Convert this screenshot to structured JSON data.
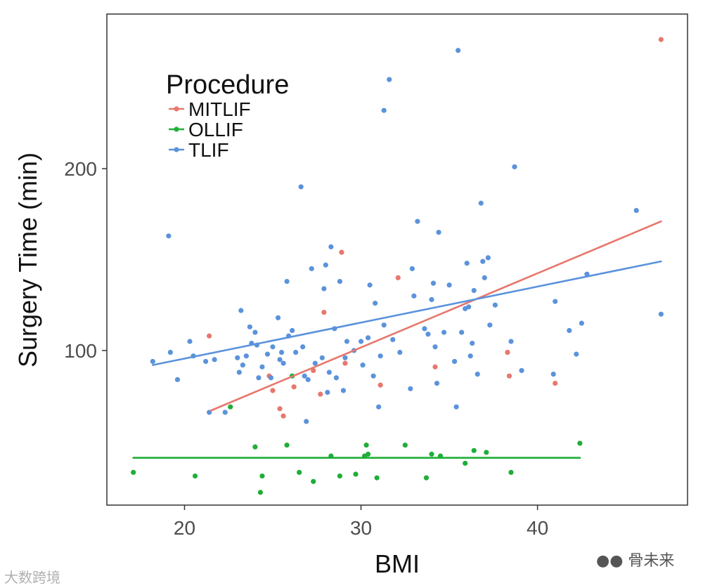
{
  "chart_data": {
    "type": "scatter",
    "title": "",
    "xlabel": "BMI",
    "ylabel": "Surgery Time (min)",
    "xlim": [
      15.6,
      48.5
    ],
    "ylim": [
      15,
      285
    ],
    "xticks": [
      20,
      30,
      40
    ],
    "yticks": [
      100,
      200
    ],
    "grid": false,
    "legend": {
      "title": "Procedure",
      "position": "top-left"
    },
    "series": [
      {
        "name": "MITLIF",
        "color": "#E8776D",
        "points": [
          [
            21.4,
            108
          ],
          [
            24.8,
            86
          ],
          [
            25.0,
            78
          ],
          [
            25.4,
            68
          ],
          [
            25.6,
            64
          ],
          [
            26.2,
            80
          ],
          [
            27.3,
            89
          ],
          [
            27.7,
            76
          ],
          [
            27.9,
            121
          ],
          [
            28.9,
            154
          ],
          [
            29.1,
            93
          ],
          [
            31.1,
            81
          ],
          [
            32.1,
            140
          ],
          [
            34.2,
            91
          ],
          [
            38.3,
            99
          ],
          [
            38.4,
            86
          ],
          [
            41.0,
            82
          ],
          [
            47.0,
            271
          ]
        ],
        "fit": {
          "x": [
            21.5,
            47.0
          ],
          "y": [
            67,
            171
          ]
        }
      },
      {
        "name": "OLLIF",
        "color": "#1FAE38",
        "points": [
          [
            17.1,
            33
          ],
          [
            20.6,
            31
          ],
          [
            22.6,
            69
          ],
          [
            24.0,
            47
          ],
          [
            24.3,
            22
          ],
          [
            24.4,
            31
          ],
          [
            25.8,
            48
          ],
          [
            26.1,
            86
          ],
          [
            26.5,
            33
          ],
          [
            27.3,
            28
          ],
          [
            28.3,
            42
          ],
          [
            28.8,
            31
          ],
          [
            29.7,
            32
          ],
          [
            30.2,
            42
          ],
          [
            30.3,
            48
          ],
          [
            30.4,
            43
          ],
          [
            30.9,
            30
          ],
          [
            32.5,
            48
          ],
          [
            33.7,
            30
          ],
          [
            34.0,
            43
          ],
          [
            34.5,
            42
          ],
          [
            35.9,
            38
          ],
          [
            36.4,
            45
          ],
          [
            37.1,
            44
          ],
          [
            38.5,
            33
          ],
          [
            42.4,
            49
          ]
        ],
        "fit": {
          "x": [
            17.1,
            42.4
          ],
          "y": [
            41,
            41
          ]
        }
      },
      {
        "name": "TLIF",
        "color": "#5B93DB",
        "points": [
          [
            18.2,
            94
          ],
          [
            19.1,
            163
          ],
          [
            19.2,
            99
          ],
          [
            19.6,
            84
          ],
          [
            20.3,
            105
          ],
          [
            20.5,
            97
          ],
          [
            21.2,
            94
          ],
          [
            21.4,
            66
          ],
          [
            21.7,
            95
          ],
          [
            22.3,
            66
          ],
          [
            23.0,
            96
          ],
          [
            23.1,
            88
          ],
          [
            23.2,
            122
          ],
          [
            23.3,
            92
          ],
          [
            23.5,
            97
          ],
          [
            23.7,
            113
          ],
          [
            23.8,
            104
          ],
          [
            24.0,
            110
          ],
          [
            24.1,
            103
          ],
          [
            24.2,
            85
          ],
          [
            24.4,
            91
          ],
          [
            24.7,
            98
          ],
          [
            24.9,
            85
          ],
          [
            25.0,
            102
          ],
          [
            25.3,
            118
          ],
          [
            25.4,
            95
          ],
          [
            25.5,
            99
          ],
          [
            25.6,
            93
          ],
          [
            25.8,
            138
          ],
          [
            25.9,
            108
          ],
          [
            26.1,
            111
          ],
          [
            26.3,
            99
          ],
          [
            26.6,
            190
          ],
          [
            26.7,
            102
          ],
          [
            26.8,
            86
          ],
          [
            26.9,
            61
          ],
          [
            27.0,
            84
          ],
          [
            27.2,
            145
          ],
          [
            27.4,
            93
          ],
          [
            27.8,
            96
          ],
          [
            27.9,
            134
          ],
          [
            28.0,
            147
          ],
          [
            28.1,
            77
          ],
          [
            28.2,
            88
          ],
          [
            28.3,
            157
          ],
          [
            28.5,
            112
          ],
          [
            28.6,
            85
          ],
          [
            28.8,
            138
          ],
          [
            29.0,
            78
          ],
          [
            29.1,
            96
          ],
          [
            29.2,
            105
          ],
          [
            29.6,
            100
          ],
          [
            30.0,
            105
          ],
          [
            30.1,
            92
          ],
          [
            30.4,
            107
          ],
          [
            30.5,
            136
          ],
          [
            30.7,
            86
          ],
          [
            30.8,
            126
          ],
          [
            31.0,
            69
          ],
          [
            31.1,
            97
          ],
          [
            31.3,
            114
          ],
          [
            31.6,
            249
          ],
          [
            31.8,
            106
          ],
          [
            32.2,
            99
          ],
          [
            32.8,
            79
          ],
          [
            32.9,
            145
          ],
          [
            33.0,
            130
          ],
          [
            33.2,
            171
          ],
          [
            33.6,
            112
          ],
          [
            33.8,
            109
          ],
          [
            34.0,
            128
          ],
          [
            34.1,
            137
          ],
          [
            34.2,
            102
          ],
          [
            34.3,
            82
          ],
          [
            34.4,
            165
          ],
          [
            34.7,
            110
          ],
          [
            35.0,
            136
          ],
          [
            35.3,
            94
          ],
          [
            35.4,
            69
          ],
          [
            35.5,
            265
          ],
          [
            35.7,
            110
          ],
          [
            35.9,
            123
          ],
          [
            36.0,
            148
          ],
          [
            36.1,
            124
          ],
          [
            36.2,
            97
          ],
          [
            36.3,
            104
          ],
          [
            36.4,
            133
          ],
          [
            36.6,
            87
          ],
          [
            36.8,
            181
          ],
          [
            36.9,
            149
          ],
          [
            37.0,
            140
          ],
          [
            37.2,
            151
          ],
          [
            37.3,
            114
          ],
          [
            37.6,
            125
          ],
          [
            38.5,
            105
          ],
          [
            38.7,
            201
          ],
          [
            39.1,
            89
          ],
          [
            40.9,
            87
          ],
          [
            41.0,
            127
          ],
          [
            41.8,
            111
          ],
          [
            42.2,
            98
          ],
          [
            42.5,
            115
          ],
          [
            42.8,
            142
          ],
          [
            45.6,
            177
          ],
          [
            47.0,
            120
          ],
          [
            31.3,
            232
          ]
        ],
        "fit": {
          "x": [
            18.2,
            47.0
          ],
          "y": [
            92,
            149
          ]
        }
      }
    ]
  },
  "watermarks": {
    "left": "大数跨境",
    "right": "骨未来"
  }
}
